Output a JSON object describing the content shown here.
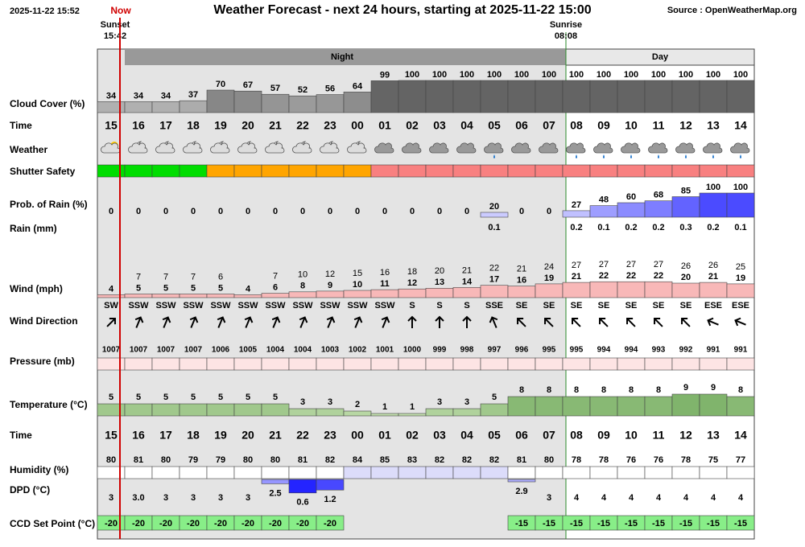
{
  "header": {
    "timestamp": "2025-11-22 15:52",
    "now": "Now",
    "title": "Weather Forecast - next 24 hours, starting at 2025-11-22 15:00",
    "source": "Source : OpenWeatherMap.org",
    "sunset": {
      "label": "Sunset",
      "time": "15:42"
    },
    "sunrise": {
      "label": "Sunrise",
      "time": "08:08"
    },
    "night": "Night",
    "day": "Day"
  },
  "hours": [
    "15",
    "16",
    "17",
    "18",
    "19",
    "20",
    "21",
    "22",
    "23",
    "00",
    "01",
    "02",
    "03",
    "04",
    "05",
    "06",
    "07",
    "08",
    "09",
    "10",
    "11",
    "12",
    "13",
    "14"
  ],
  "rows": {
    "cloud_cover": {
      "label": "Cloud Cover (%)",
      "values": [
        34,
        34,
        34,
        37,
        70,
        67,
        57,
        52,
        56,
        64,
        99,
        100,
        100,
        100,
        100,
        100,
        100,
        100,
        100,
        100,
        100,
        100,
        100,
        100
      ]
    },
    "time": {
      "label": "Time"
    },
    "weather": {
      "label": "Weather"
    },
    "shutter_safety": {
      "label": "Shutter Safety",
      "colors": [
        "#00dd00",
        "#00dd00",
        "#00dd00",
        "#00dd00",
        "#ffa500",
        "#ffa500",
        "#ffa500",
        "#ffa500",
        "#ffa500",
        "#ffa500",
        "#f88080",
        "#f88080",
        "#f88080",
        "#f88080",
        "#f88080",
        "#f88080",
        "#f88080",
        "#f88080",
        "#f88080",
        "#f88080",
        "#f88080",
        "#f88080",
        "#f88080",
        "#f88080"
      ]
    },
    "rain_probability": {
      "label": "Prob. of Rain (%)",
      "values": [
        0,
        0,
        0,
        0,
        0,
        0,
        0,
        0,
        0,
        0,
        0,
        0,
        0,
        0,
        20,
        0,
        0,
        27,
        48,
        60,
        68,
        85,
        100,
        100
      ]
    },
    "rain": {
      "label": "Rain (mm)",
      "values": [
        null,
        null,
        null,
        null,
        null,
        null,
        null,
        null,
        null,
        null,
        null,
        null,
        null,
        null,
        0.1,
        null,
        null,
        0.2,
        0.1,
        0.2,
        0.2,
        0.3,
        0.2,
        0.1
      ]
    },
    "wind": {
      "label": "Wind (mph)",
      "gust": [
        null,
        7,
        7,
        7,
        6,
        null,
        7,
        10,
        12,
        15,
        16,
        18,
        20,
        21,
        22,
        21,
        24,
        27,
        27,
        27,
        27,
        26,
        26,
        25
      ],
      "speed": [
        4,
        5,
        5,
        5,
        5,
        4,
        6,
        8,
        9,
        10,
        11,
        12,
        13,
        14,
        17,
        16,
        19,
        21,
        22,
        22,
        22,
        20,
        21,
        19
      ]
    },
    "wind_direction": {
      "label": "Wind Direction",
      "values": [
        "SW",
        "SSW",
        "SSW",
        "SSW",
        "SSW",
        "SSW",
        "SSW",
        "SSW",
        "SSW",
        "SSW",
        "SSW",
        "S",
        "S",
        "S",
        "SSE",
        "SE",
        "SE",
        "SE",
        "SE",
        "SE",
        "SE",
        "SE",
        "ESE",
        "ESE"
      ]
    },
    "pressure": {
      "label": "Pressure (mb)",
      "values": [
        1007,
        1007,
        1007,
        1007,
        1006,
        1005,
        1004,
        1004,
        1003,
        1002,
        1001,
        1000,
        999,
        998,
        997,
        996,
        995,
        995,
        994,
        994,
        993,
        992,
        991,
        991
      ]
    },
    "temperature": {
      "label": "Temperature (°C)",
      "values": [
        5,
        5,
        5,
        5,
        5,
        5,
        5,
        3,
        3,
        2,
        1,
        1,
        3,
        3,
        5,
        8,
        8,
        8,
        8,
        8,
        8,
        9,
        9,
        8
      ]
    },
    "humidity": {
      "label": "Humidity (%)",
      "values": [
        80,
        81,
        80,
        79,
        79,
        80,
        80,
        81,
        82,
        84,
        85,
        83,
        82,
        82,
        82,
        81,
        80,
        78,
        78,
        76,
        76,
        78,
        75,
        77
      ]
    },
    "dpd": {
      "label": "DPD (°C)",
      "values": [
        3,
        3,
        3,
        3,
        3,
        3,
        2.5,
        0.6,
        1.2,
        null,
        null,
        null,
        null,
        null,
        null,
        2.9,
        3,
        4,
        4,
        4,
        4,
        4,
        4,
        4
      ],
      "value_labels": [
        "3",
        "3.0",
        "3",
        "3",
        "3",
        "3",
        "2.5",
        "0.6",
        "1.2",
        null,
        null,
        null,
        null,
        null,
        null,
        "2.9",
        "3",
        "4",
        "4",
        "4",
        "4",
        "4",
        "4",
        "4"
      ]
    },
    "ccd_set_point": {
      "label": "CCD Set Point (°C)",
      "values": [
        -20,
        -20,
        -20,
        -20,
        -20,
        -20,
        -20,
        -20,
        -20,
        null,
        null,
        null,
        null,
        null,
        null,
        -15,
        -15,
        -15,
        -15,
        -15,
        -15,
        -15,
        -15,
        -15
      ]
    }
  }
}
